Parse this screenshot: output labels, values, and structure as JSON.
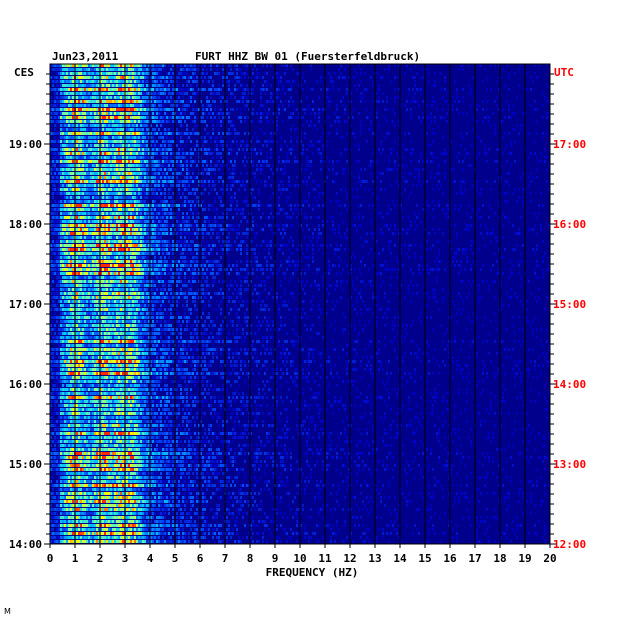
{
  "chart_data": {
    "type": "heatmap",
    "date": "Jun23,2011",
    "title": "FURT HHZ BW 01 (Fuersterfeldbruck)",
    "left_axis_label": "CES",
    "right_axis_label": "UTC",
    "xlabel": "FREQUENCY (HZ)",
    "xlim": [
      0,
      20
    ],
    "x_ticks": [
      "0",
      "1",
      "2",
      "3",
      "4",
      "5",
      "6",
      "7",
      "8",
      "9",
      "10",
      "11",
      "12",
      "13",
      "14",
      "15",
      "16",
      "17",
      "18",
      "19",
      "20"
    ],
    "left_time_ticks": [
      "19:00",
      "18:00",
      "17:00",
      "16:00",
      "15:00",
      "14:00"
    ],
    "right_time_ticks": [
      "17:00",
      "16:00",
      "15:00",
      "14:00",
      "13:00",
      "12:00"
    ],
    "time_range_local": [
      "14:00",
      "19:50"
    ],
    "colors": {
      "low": "#0000aa",
      "mid": "#00b4ff",
      "high": "#ffff00",
      "peak": "#ff0000",
      "utc_label": "#ff0000"
    },
    "dominant_frequency_bands_hz": [
      1.0,
      2.1,
      2.8,
      3.2
    ],
    "footer_mark": "M"
  }
}
